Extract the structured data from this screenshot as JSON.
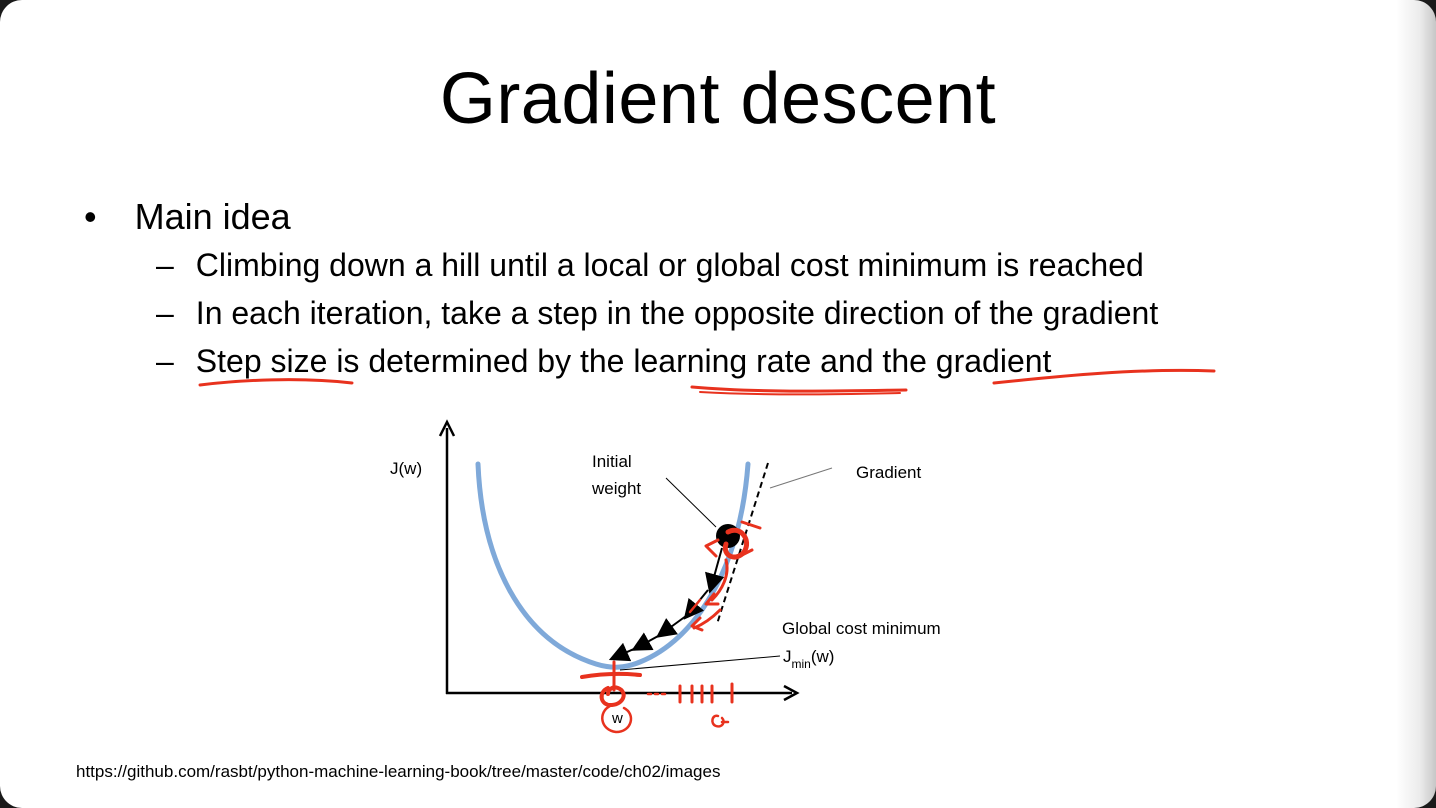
{
  "slide": {
    "title": "Gradient descent",
    "bullet": {
      "marker": "•",
      "text": "Main idea",
      "subitems": [
        {
          "marker": "–",
          "text": "Climbing down a hill until a local or global cost minimum is reached"
        },
        {
          "marker": "–",
          "text": "In each iteration, take a step in the opposite direction of the gradient"
        },
        {
          "marker": "–",
          "text": "Step size is determined by the learning rate and the gradient"
        }
      ]
    },
    "source_url": "https://github.com/rasbt/python-machine-learning-book/tree/master/code/ch02/images"
  },
  "diagram": {
    "y_label": "J(w)",
    "x_label": "w",
    "initial_weight_label": [
      "Initial",
      "weight"
    ],
    "gradient_label": "Gradient",
    "global_min_label": "Global cost minimum",
    "jmin_label": {
      "main": "J",
      "sub": "min",
      "tail": "(w)"
    }
  },
  "colors": {
    "curve": "#7fa9d9",
    "annotation": "#e8321e",
    "text": "#000000"
  }
}
